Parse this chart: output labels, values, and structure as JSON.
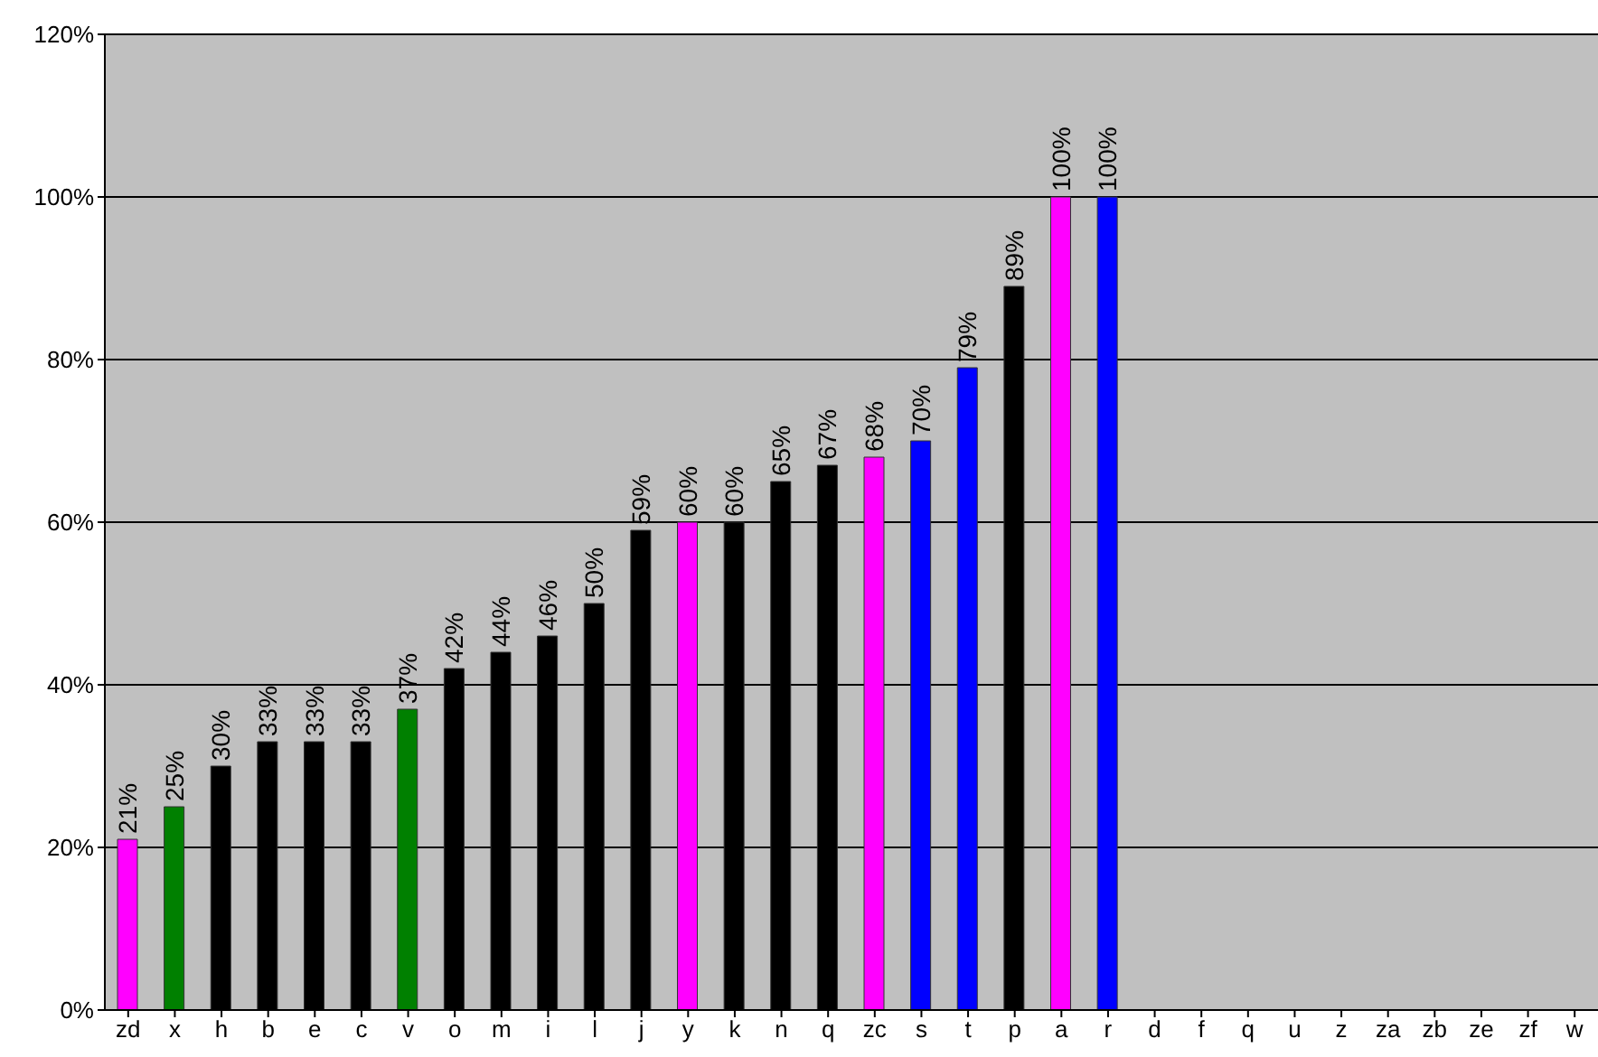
{
  "chart_data": {
    "type": "bar",
    "categories": [
      "zd",
      "x",
      "h",
      "b",
      "e",
      "c",
      "v",
      "o",
      "m",
      "i",
      "l",
      "j",
      "y",
      "k",
      "n",
      "q",
      "zc",
      "s",
      "t",
      "p",
      "a",
      "r",
      "d",
      "f",
      "q",
      "u",
      "z",
      "za",
      "zb",
      "ze",
      "zf",
      "w"
    ],
    "values": [
      21,
      25,
      30,
      33,
      33,
      33,
      37,
      42,
      44,
      46,
      50,
      59,
      60,
      60,
      65,
      67,
      68,
      70,
      79,
      89,
      100,
      100,
      null,
      null,
      null,
      null,
      null,
      null,
      null,
      null,
      null,
      null
    ],
    "colors": [
      "#ff00ff",
      "#008000",
      "#000000",
      "#000000",
      "#000000",
      "#000000",
      "#008000",
      "#000000",
      "#000000",
      "#000000",
      "#000000",
      "#000000",
      "#ff00ff",
      "#000000",
      "#000000",
      "#000000",
      "#ff00ff",
      "#0000ff",
      "#0000ff",
      "#000000",
      "#ff00ff",
      "#0000ff",
      "#000000",
      "#000000",
      "#000000",
      "#000000",
      "#000000",
      "#000000",
      "#000000",
      "#000000",
      "#000000",
      "#000000"
    ],
    "value_labels": [
      "21%",
      "25%",
      "30%",
      "33%",
      "33%",
      "33%",
      "37%",
      "42%",
      "44%",
      "46%",
      "50%",
      "59%",
      "60%",
      "60%",
      "65%",
      "67%",
      "68%",
      "70%",
      "79%",
      "89%",
      "100%",
      "100%",
      null,
      null,
      null,
      null,
      null,
      null,
      null,
      null,
      null,
      null
    ],
    "ylim": [
      0,
      120
    ],
    "yticks": [
      {
        "value": 0,
        "label": "0%"
      },
      {
        "value": 20,
        "label": "20%"
      },
      {
        "value": 40,
        "label": "40%"
      },
      {
        "value": 60,
        "label": "60%"
      },
      {
        "value": 80,
        "label": "80%"
      },
      {
        "value": 100,
        "label": "100%"
      },
      {
        "value": 120,
        "label": "120%"
      }
    ],
    "grid": "y"
  }
}
